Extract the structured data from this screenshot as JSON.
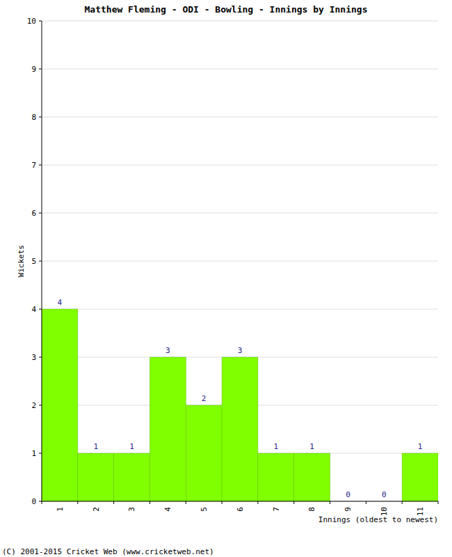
{
  "chart_data": {
    "type": "bar",
    "title": "Matthew Fleming - ODI - Bowling - Innings by Innings",
    "x_label": "Innings (oldest to newest)",
    "y_label": "Wickets",
    "footer": "(C) 2001-2015 Cricket Web (www.cricketweb.net)",
    "categories": [
      "1",
      "2",
      "3",
      "4",
      "5",
      "6",
      "7",
      "8",
      "9",
      "10",
      "11"
    ],
    "values": [
      4,
      1,
      1,
      3,
      2,
      3,
      1,
      1,
      0,
      0,
      1
    ],
    "color": "#80ff00",
    "ylim": [
      0,
      10
    ],
    "yticks": [
      0,
      1,
      2,
      3,
      4,
      5,
      6,
      7,
      8,
      9,
      10
    ],
    "grid": true,
    "data_labels": true
  }
}
